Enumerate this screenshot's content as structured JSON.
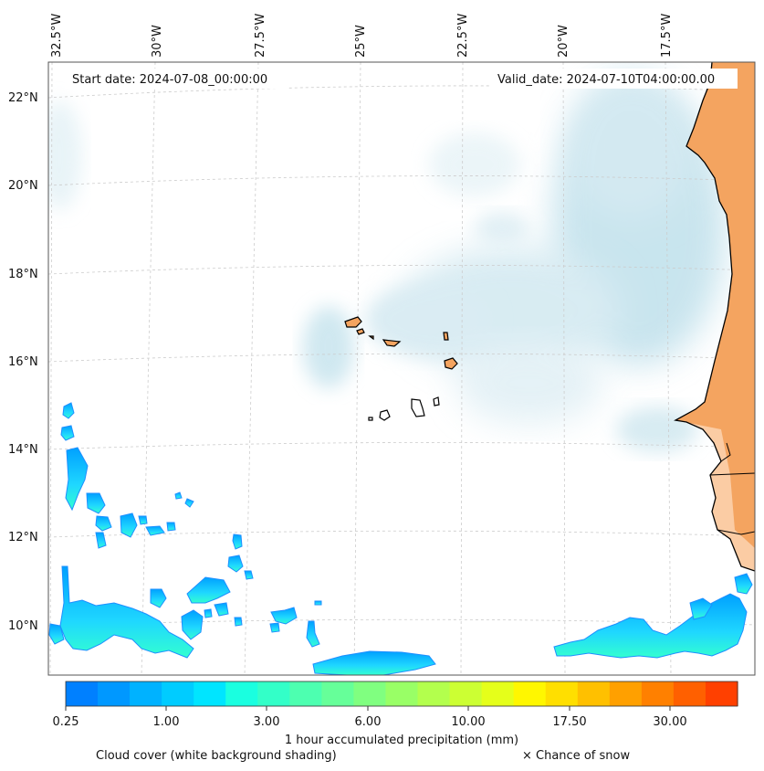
{
  "map": {
    "start_date_label": "Start date: 2024-07-08_00:00:00",
    "valid_date_label": "Valid_date: 2024-07-10T04:00:00.00",
    "longitude_ticks": [
      "32.5°W",
      "30°W",
      "27.5°W",
      "25°W",
      "22.5°W",
      "20°W",
      "17.5°W"
    ],
    "latitude_ticks": [
      "22°N",
      "20°N",
      "18°N",
      "16°N",
      "14°N",
      "12°N",
      "10°N"
    ],
    "land_color": "#f4a460",
    "cloud_color": "#add8e6",
    "coastline_color": "#000000",
    "gridline_style": "dashed-light-gray"
  },
  "colorbar": {
    "tick_labels": [
      "0.25",
      "1.00",
      "3.00",
      "6.00",
      "10.00",
      "17.50",
      "30.00"
    ],
    "label": "1 hour accumulated precipitation (mm)",
    "colors": [
      "#0080ff",
      "#0098ff",
      "#00b2ff",
      "#00ccff",
      "#00e5ff",
      "#1affe0",
      "#33ffc8",
      "#4dffb0",
      "#66ff99",
      "#80ff80",
      "#99ff66",
      "#b3ff4d",
      "#ccff33",
      "#e5ff1a",
      "#fff700",
      "#ffdf00",
      "#ffc000",
      "#ffa000",
      "#ff8000",
      "#ff6000",
      "#ff4000"
    ]
  },
  "legend": {
    "cloud_cover": "Cloud cover (white background shading)",
    "snow": "× Chance of snow"
  }
}
